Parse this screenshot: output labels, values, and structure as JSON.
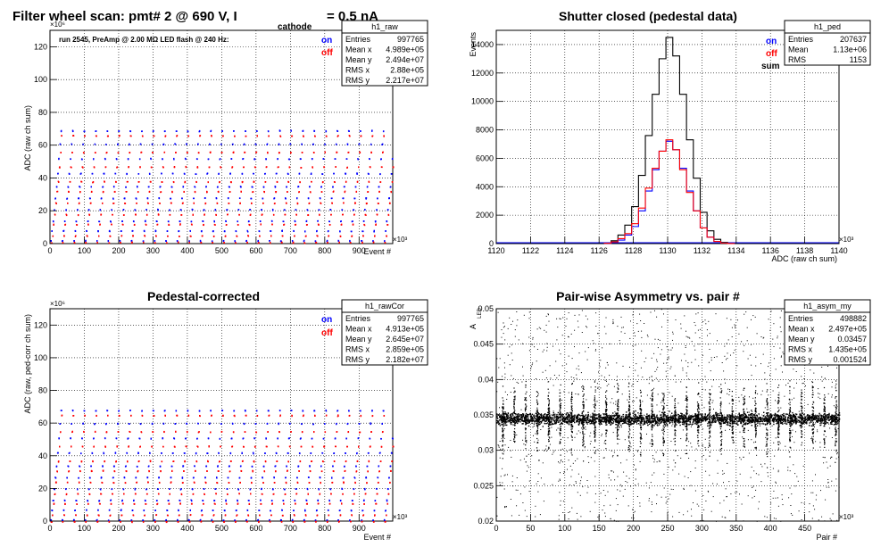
{
  "chart_data": [
    {
      "type": "scatter",
      "title": "Filter wheel scan: pmt#   2 @   690 V, I",
      "title_subscript": "cathode",
      "title_suffix": "= 0.5 nA",
      "subtitle": "run 2545, PreAmp @ 2.00 MΩ  LED flash @  240 Hz:",
      "xlabel": "Event #",
      "ylabel": "ADC (raw ch sum)",
      "x_multiplier": "×10³",
      "y_multiplier": "×10⁶",
      "xlim": [
        0,
        998
      ],
      "ylim": [
        0,
        130
      ],
      "grid": true,
      "xticks": [
        "0",
        "100",
        "200",
        "300",
        "400",
        "500",
        "600",
        "700",
        "800",
        "900"
      ],
      "yticks": [
        "0",
        "20",
        "40",
        "60",
        "80",
        "100",
        "120"
      ],
      "legend": [
        {
          "name": "on",
          "color": "#0000ff"
        },
        {
          "name": "off",
          "color": "#ff0000"
        }
      ],
      "levels_on": [
        2,
        8,
        14,
        21,
        28,
        35,
        43,
        52,
        61,
        69
      ],
      "levels_off": [
        1,
        5,
        12,
        18,
        25,
        32,
        38,
        47,
        56,
        66
      ],
      "period": 33.5,
      "stats": {
        "name": "h1_raw",
        "rows": [
          [
            "Entries",
            "997765"
          ],
          [
            "Mean x",
            "4.989e+05"
          ],
          [
            "Mean y",
            "2.494e+07"
          ],
          [
            "RMS x",
            "2.88e+05"
          ],
          [
            "RMS y",
            "2.217e+07"
          ]
        ]
      }
    },
    {
      "type": "line",
      "title": "Shutter closed (pedestal data)",
      "xlabel": "ADC (raw ch sum)",
      "ylabel": "Events",
      "x_multiplier": "×10³",
      "xlim": [
        1120,
        1140
      ],
      "ylim": [
        0,
        15000
      ],
      "grid": true,
      "xticks": [
        "1120",
        "1122",
        "1124",
        "1126",
        "1128",
        "1130",
        "1132",
        "1134",
        "1136",
        "1138",
        "1140"
      ],
      "yticks": [
        "0",
        "2000",
        "4000",
        "6000",
        "8000",
        "10000",
        "12000",
        "14000"
      ],
      "legend": [
        {
          "name": "on",
          "color": "#0000ff"
        },
        {
          "name": "off",
          "color": "#ff0000"
        },
        {
          "name": "sum",
          "color": "#000000"
        }
      ],
      "bin_centers": [
        1126.5,
        1126.9,
        1127.3,
        1127.7,
        1128.1,
        1128.5,
        1128.9,
        1129.3,
        1129.7,
        1130.1,
        1130.5,
        1130.9,
        1131.3,
        1131.7,
        1132.1,
        1132.5,
        1132.9,
        1133.3,
        1133.7
      ],
      "series": [
        {
          "name": "sum",
          "color": "#000000",
          "values": [
            30,
            200,
            600,
            1300,
            2600,
            4800,
            7600,
            10500,
            13000,
            14500,
            13200,
            10500,
            7300,
            4600,
            2200,
            900,
            300,
            80,
            10
          ]
        },
        {
          "name": "on",
          "color": "#0000ff",
          "values": [
            10,
            80,
            250,
            600,
            1200,
            2300,
            3700,
            5200,
            6500,
            7200,
            6600,
            5300,
            3700,
            2300,
            1100,
            450,
            150,
            40,
            5
          ]
        },
        {
          "name": "off",
          "color": "#ff0000",
          "values": [
            20,
            120,
            350,
            700,
            1400,
            2500,
            3900,
            5300,
            6500,
            7300,
            6600,
            5200,
            3600,
            2300,
            1100,
            450,
            150,
            40,
            5
          ]
        }
      ],
      "stats": {
        "name": "h1_ped",
        "rows": [
          [
            "Entries",
            "207637"
          ],
          [
            "Mean",
            "1.13e+06"
          ],
          [
            "RMS",
            "1153"
          ]
        ]
      }
    },
    {
      "type": "scatter",
      "title": "Pedestal-corrected",
      "xlabel": "Event #",
      "ylabel": "ADC (raw, ped-corr ch sum)",
      "x_multiplier": "×10³",
      "y_multiplier": "×10⁶",
      "xlim": [
        0,
        998
      ],
      "ylim": [
        0,
        130
      ],
      "grid": true,
      "xticks": [
        "0",
        "100",
        "200",
        "300",
        "400",
        "500",
        "600",
        "700",
        "800",
        "900"
      ],
      "yticks": [
        "0",
        "20",
        "40",
        "60",
        "80",
        "100",
        "120"
      ],
      "legend": [
        {
          "name": "on",
          "color": "#0000ff"
        },
        {
          "name": "off",
          "color": "#ff0000"
        }
      ],
      "levels_on": [
        1,
        7,
        13,
        20,
        27,
        34,
        42,
        51,
        60,
        68
      ],
      "levels_off": [
        0,
        4,
        11,
        17,
        24,
        31,
        37,
        46,
        55,
        65
      ],
      "period": 33.5,
      "stats": {
        "name": "h1_rawCor",
        "rows": [
          [
            "Entries",
            "997765"
          ],
          [
            "Mean x",
            "4.913e+05"
          ],
          [
            "Mean y",
            "2.645e+07"
          ],
          [
            "RMS x",
            "2.859e+05"
          ],
          [
            "RMS y",
            "2.182e+07"
          ]
        ]
      }
    },
    {
      "type": "scatter",
      "title": "Pair-wise Asymmetry vs. pair #",
      "xlabel": "Pair #",
      "ylabel": "A",
      "ylabel_subscript": "LED",
      "x_multiplier": "×10³",
      "xlim": [
        0,
        500
      ],
      "ylim": [
        0.02,
        0.05
      ],
      "grid": true,
      "xticks": [
        "0",
        "50",
        "100",
        "150",
        "200",
        "250",
        "300",
        "350",
        "400",
        "450"
      ],
      "yticks": [
        "0.02",
        "0.025",
        "0.03",
        "0.035",
        "0.04",
        "0.045",
        "0.05"
      ],
      "band_center": 0.0345,
      "period": 16.75,
      "stats": {
        "name": "h1_asym_my",
        "rows": [
          [
            "Entries",
            "498882"
          ],
          [
            "Mean x",
            "2.497e+05"
          ],
          [
            "Mean y",
            "0.03457"
          ],
          [
            "RMS x",
            "1.435e+05"
          ],
          [
            "RMS y",
            "0.001524"
          ]
        ]
      }
    }
  ]
}
